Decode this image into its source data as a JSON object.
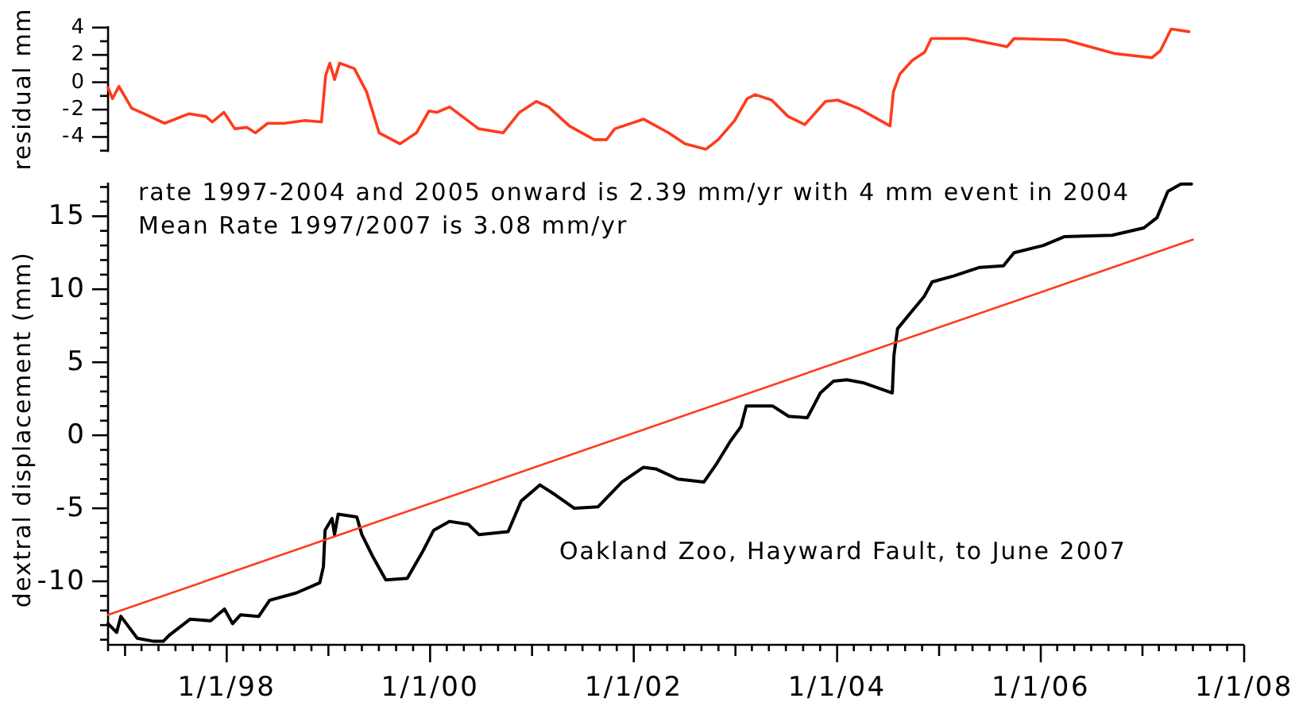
{
  "chart_data": [
    {
      "type": "line",
      "ylabel": "residual mm",
      "xlim": [
        "1996-11-01",
        "2008-01-01"
      ],
      "ylim": [
        -5.1,
        4.1
      ],
      "yticks": [
        4,
        2,
        0,
        -2,
        -4,
        {
          "value": 3,
          "label": null
        },
        {
          "value": 1,
          "label": null
        },
        {
          "value": -1,
          "label": null
        },
        {
          "value": -3,
          "label": null
        },
        {
          "value": -5,
          "label": null
        }
      ],
      "tick_labels": "y",
      "series": [
        {
          "color": "#ff3b1c",
          "x": [
            "1996-11-01",
            "1996-11-17",
            "1996-12-10",
            "1997-01-25",
            "1997-03-10",
            "1997-05-23",
            "1997-08-19",
            "1997-10-18",
            "1997-11-10",
            "1997-12-22",
            "1998-01-30",
            "1998-03-15",
            "1998-04-14",
            "1998-05-28",
            "1998-07-26",
            "1998-10-09",
            "1998-12-07",
            "1998-12-22",
            "1999-01-06",
            "1999-01-23",
            "1999-02-10",
            "1999-04-04",
            "1999-05-18",
            "1999-07-02",
            "1999-09-15",
            "1999-11-13",
            "1999-12-28",
            "2000-01-26",
            "2000-03-11",
            "2000-06-23",
            "2000-09-19",
            "2000-11-17",
            "2001-01-16",
            "2001-03-01",
            "2001-05-15",
            "2001-08-12",
            "2001-09-25",
            "2001-10-25",
            "2002-02-06",
            "2002-05-06",
            "2002-07-04",
            "2002-09-17",
            "2002-10-31",
            "2002-12-29",
            "2003-02-12",
            "2003-03-13",
            "2003-05-11",
            "2003-07-09",
            "2003-09-07",
            "2003-11-20",
            "2004-01-03",
            "2004-03-17",
            "2004-07-09",
            "2004-07-21",
            "2004-08-13",
            "2004-09-27",
            "2004-11-10",
            "2004-12-04",
            "2005-04-08",
            "2005-09-02",
            "2005-09-27",
            "2006-03-29",
            "2006-09-24",
            "2007-02-04",
            "2007-03-06",
            "2007-04-14",
            "2007-06-17"
          ],
          "values": [
            -0.4,
            -1.2,
            -0.3,
            -1.9,
            -2.3,
            -3.0,
            -2.3,
            -2.5,
            -2.9,
            -2.2,
            -3.4,
            -3.3,
            -3.7,
            -3.0,
            -3.0,
            -2.8,
            -2.9,
            0.5,
            1.4,
            0.2,
            1.4,
            1.0,
            -0.7,
            -3.7,
            -4.5,
            -3.7,
            -2.1,
            -2.2,
            -1.8,
            -3.4,
            -3.7,
            -2.2,
            -1.4,
            -1.8,
            -3.2,
            -4.2,
            -4.2,
            -3.4,
            -2.7,
            -3.7,
            -4.5,
            -4.9,
            -4.2,
            -2.8,
            -1.2,
            -0.9,
            -1.3,
            -2.5,
            -3.1,
            -1.4,
            -1.3,
            -1.9,
            -3.2,
            -0.7,
            0.6,
            1.6,
            2.2,
            3.2,
            3.2,
            2.6,
            3.2,
            3.1,
            2.1,
            1.8,
            2.3,
            3.9,
            3.7
          ]
        }
      ]
    },
    {
      "type": "line",
      "ylabel": "dextral displacement (mm)",
      "annotations": [
        "rate 1997-2004 and 2005 onward is 2.39 mm/yr with 4 mm event in 2004",
        "Mean Rate 1997/2007 is 3.08 mm/yr",
        "Oakland Zoo, Hayward Fault, to June 2007"
      ],
      "xlim": [
        "1996-11-01",
        "2008-01-01"
      ],
      "xticks": [
        {
          "value": "1996-11-01",
          "label": null
        },
        {
          "value": "1997-01-01",
          "label": null
        },
        {
          "value": "1997-03-01",
          "label": null
        },
        {
          "value": "1997-05-01",
          "label": null
        },
        {
          "value": "1997-07-01",
          "label": null
        },
        {
          "value": "1997-09-01",
          "label": null
        },
        {
          "value": "1997-11-01",
          "label": null
        },
        {
          "value": "1998-01-01",
          "label": "1/1/98"
        },
        {
          "value": "1998-03-01",
          "label": null
        },
        {
          "value": "1998-05-01",
          "label": null
        },
        {
          "value": "1998-07-01",
          "label": null
        },
        {
          "value": "1998-09-01",
          "label": null
        },
        {
          "value": "1998-11-01",
          "label": null
        },
        {
          "value": "1999-01-01",
          "label": null
        },
        {
          "value": "1999-03-01",
          "label": null
        },
        {
          "value": "1999-05-01",
          "label": null
        },
        {
          "value": "1999-07-01",
          "label": null
        },
        {
          "value": "1999-09-01",
          "label": null
        },
        {
          "value": "1999-11-01",
          "label": null
        },
        {
          "value": "2000-01-01",
          "label": "1/1/00"
        },
        {
          "value": "2000-03-01",
          "label": null
        },
        {
          "value": "2000-05-01",
          "label": null
        },
        {
          "value": "2000-07-01",
          "label": null
        },
        {
          "value": "2000-09-01",
          "label": null
        },
        {
          "value": "2000-11-01",
          "label": null
        },
        {
          "value": "2001-01-01",
          "label": null
        },
        {
          "value": "2001-03-01",
          "label": null
        },
        {
          "value": "2001-05-01",
          "label": null
        },
        {
          "value": "2001-07-01",
          "label": null
        },
        {
          "value": "2001-09-01",
          "label": null
        },
        {
          "value": "2001-11-01",
          "label": null
        },
        {
          "value": "2002-01-01",
          "label": "1/1/02"
        },
        {
          "value": "2002-03-01",
          "label": null
        },
        {
          "value": "2002-05-01",
          "label": null
        },
        {
          "value": "2002-07-01",
          "label": null
        },
        {
          "value": "2002-09-01",
          "label": null
        },
        {
          "value": "2002-11-01",
          "label": null
        },
        {
          "value": "2003-01-01",
          "label": null
        },
        {
          "value": "2003-03-01",
          "label": null
        },
        {
          "value": "2003-05-01",
          "label": null
        },
        {
          "value": "2003-07-01",
          "label": null
        },
        {
          "value": "2003-09-01",
          "label": null
        },
        {
          "value": "2003-11-01",
          "label": null
        },
        {
          "value": "2004-01-01",
          "label": "1/1/04"
        },
        {
          "value": "2004-03-01",
          "label": null
        },
        {
          "value": "2004-05-01",
          "label": null
        },
        {
          "value": "2004-07-01",
          "label": null
        },
        {
          "value": "2004-09-01",
          "label": null
        },
        {
          "value": "2004-11-01",
          "label": null
        },
        {
          "value": "2005-01-01",
          "label": null
        },
        {
          "value": "2005-03-01",
          "label": null
        },
        {
          "value": "2005-05-01",
          "label": null
        },
        {
          "value": "2005-07-01",
          "label": null
        },
        {
          "value": "2005-09-01",
          "label": null
        },
        {
          "value": "2005-11-01",
          "label": null
        },
        {
          "value": "2006-01-01",
          "label": "1/1/06"
        },
        {
          "value": "2006-03-01",
          "label": null
        },
        {
          "value": "2006-05-01",
          "label": null
        },
        {
          "value": "2006-07-01",
          "label": null
        },
        {
          "value": "2006-09-01",
          "label": null
        },
        {
          "value": "2006-11-01",
          "label": null
        },
        {
          "value": "2007-01-01",
          "label": null
        },
        {
          "value": "2007-03-01",
          "label": null
        },
        {
          "value": "2007-05-01",
          "label": null
        },
        {
          "value": "2007-07-01",
          "label": null
        },
        {
          "value": "2007-09-01",
          "label": null
        },
        {
          "value": "2007-11-01",
          "label": null
        },
        {
          "value": "2008-01-01",
          "label": "1/1/08"
        }
      ],
      "ylim": [
        -14.35,
        17.3
      ],
      "yticks": [
        15,
        10,
        5,
        0,
        -5,
        -10,
        {
          "value": 17,
          "label": null
        },
        {
          "value": 16,
          "label": null
        },
        {
          "value": 14,
          "label": null
        },
        {
          "value": 13,
          "label": null
        },
        {
          "value": 12,
          "label": null
        },
        {
          "value": 11,
          "label": null
        },
        {
          "value": 9,
          "label": null
        },
        {
          "value": 8,
          "label": null
        },
        {
          "value": 7,
          "label": null
        },
        {
          "value": 6,
          "label": null
        },
        {
          "value": 4,
          "label": null
        },
        {
          "value": 3,
          "label": null
        },
        {
          "value": 2,
          "label": null
        },
        {
          "value": 1,
          "label": null
        },
        {
          "value": -1,
          "label": null
        },
        {
          "value": -2,
          "label": null
        },
        {
          "value": -3,
          "label": null
        },
        {
          "value": -4,
          "label": null
        },
        {
          "value": -6,
          "label": null
        },
        {
          "value": -7,
          "label": null
        },
        {
          "value": -8,
          "label": null
        },
        {
          "value": -9,
          "label": null
        },
        {
          "value": -11,
          "label": null
        },
        {
          "value": -12,
          "label": null
        },
        {
          "value": -13,
          "label": null
        },
        {
          "value": -14,
          "label": null
        }
      ],
      "series": [
        {
          "color": "#000000",
          "x": [
            "1996-11-01",
            "1996-12-02",
            "1996-12-17",
            "1997-02-14",
            "1997-04-11",
            "1997-05-19",
            "1997-06-08",
            "1997-08-22",
            "1997-11-04",
            "1997-12-24",
            "1998-01-22",
            "1998-02-19",
            "1998-04-26",
            "1998-06-04",
            "1998-09-07",
            "1998-12-01",
            "1998-12-14",
            "1998-12-20",
            "1999-01-14",
            "1999-01-23",
            "1999-02-05",
            "1999-04-13",
            "1999-05-01",
            "1999-06-09",
            "1999-07-26",
            "1999-10-11",
            "1999-12-07",
            "2000-01-14",
            "2000-03-11",
            "2000-05-17",
            "2000-06-24",
            "2000-10-07",
            "2000-11-23",
            "2001-01-29",
            "2001-03-27",
            "2001-06-02",
            "2001-08-26",
            "2001-11-20",
            "2002-02-04",
            "2002-03-21",
            "2002-06-08",
            "2002-09-10",
            "2002-10-27",
            "2002-12-14",
            "2003-01-21",
            "2003-02-09",
            "2003-05-15",
            "2003-07-11",
            "2003-09-16",
            "2003-11-02",
            "2003-12-19",
            "2004-02-05",
            "2004-04-03",
            "2004-07-17",
            "2004-07-23",
            "2004-08-05",
            "2004-09-21",
            "2004-11-08",
            "2004-12-07",
            "2005-02-21",
            "2005-05-27",
            "2005-08-20",
            "2005-09-27",
            "2006-01-10",
            "2006-03-26",
            "2006-09-14",
            "2007-01-06",
            "2007-02-22",
            "2007-04-02",
            "2007-05-19",
            "2007-06-26"
          ],
          "values": [
            -12.9,
            -13.5,
            -12.4,
            -13.9,
            -14.1,
            -14.1,
            -13.7,
            -12.6,
            -12.7,
            -11.9,
            -12.9,
            -12.3,
            -12.4,
            -11.3,
            -10.8,
            -10.1,
            -9.0,
            -6.5,
            -5.7,
            -6.8,
            -5.4,
            -5.6,
            -6.8,
            -8.3,
            -9.9,
            -9.8,
            -7.9,
            -6.5,
            -5.9,
            -6.1,
            -6.8,
            -6.6,
            -4.5,
            -3.4,
            -4.1,
            -5.0,
            -4.9,
            -3.2,
            -2.2,
            -2.3,
            -3.0,
            -3.2,
            -1.9,
            -0.4,
            0.6,
            2.0,
            2.0,
            1.3,
            1.2,
            2.9,
            3.7,
            3.8,
            3.6,
            2.9,
            5.5,
            7.3,
            8.4,
            9.5,
            10.5,
            10.9,
            11.5,
            11.6,
            12.5,
            13.0,
            13.6,
            13.7,
            14.2,
            14.9,
            16.7,
            17.2,
            17.2
          ]
        },
        {
          "type": "line",
          "color": "#ff3b1c",
          "x": [
            "1996-11-01",
            "2007-07-01"
          ],
          "values": [
            -12.3,
            13.4
          ]
        }
      ]
    }
  ]
}
